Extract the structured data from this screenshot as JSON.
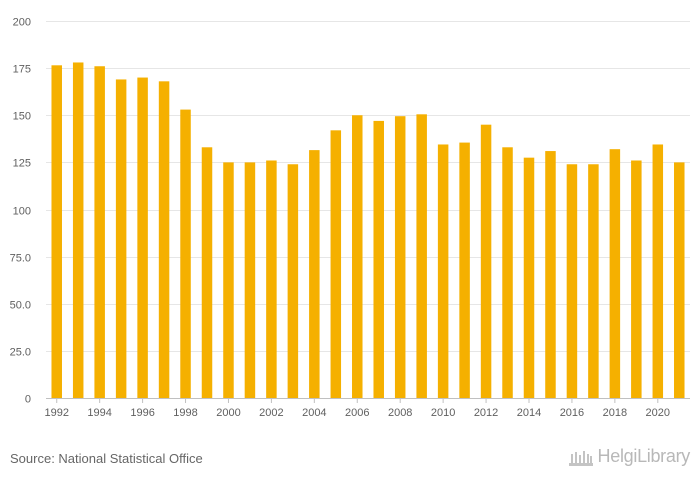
{
  "chart_data": {
    "type": "bar",
    "categories": [
      "1992",
      "1993",
      "1994",
      "1995",
      "1996",
      "1997",
      "1998",
      "1999",
      "2000",
      "2001",
      "2002",
      "2003",
      "2004",
      "2005",
      "2006",
      "2007",
      "2008",
      "2009",
      "2010",
      "2011",
      "2012",
      "2013",
      "2014",
      "2015",
      "2016",
      "2017",
      "2018",
      "2019",
      "2020",
      "2021"
    ],
    "values": [
      176.5,
      178,
      176,
      169,
      170,
      168,
      153,
      133,
      125,
      125,
      126,
      124,
      131.5,
      142,
      150,
      147,
      149.5,
      150.5,
      134.5,
      135.5,
      145,
      133,
      127.5,
      131,
      124,
      124,
      132,
      126,
      134.5,
      125
    ],
    "x_tick_labels": [
      "1992",
      "1994",
      "1996",
      "1998",
      "2000",
      "2002",
      "2004",
      "2006",
      "2008",
      "2010",
      "2012",
      "2014",
      "2016",
      "2018",
      "2020"
    ],
    "y_tick_labels": [
      "0",
      "25.0",
      "50.0",
      "75.0",
      "100",
      "125",
      "150",
      "175",
      "200"
    ],
    "y_tick_values": [
      0,
      25,
      50,
      75,
      100,
      125,
      150,
      175,
      200
    ],
    "ylim": [
      0,
      200
    ],
    "title": "",
    "xlabel": "",
    "ylabel": "",
    "grid": true,
    "bar_color": "#f5b000"
  },
  "footer": {
    "source": "Source: National Statistical Office",
    "logo_text": "HelgiLibrary"
  }
}
